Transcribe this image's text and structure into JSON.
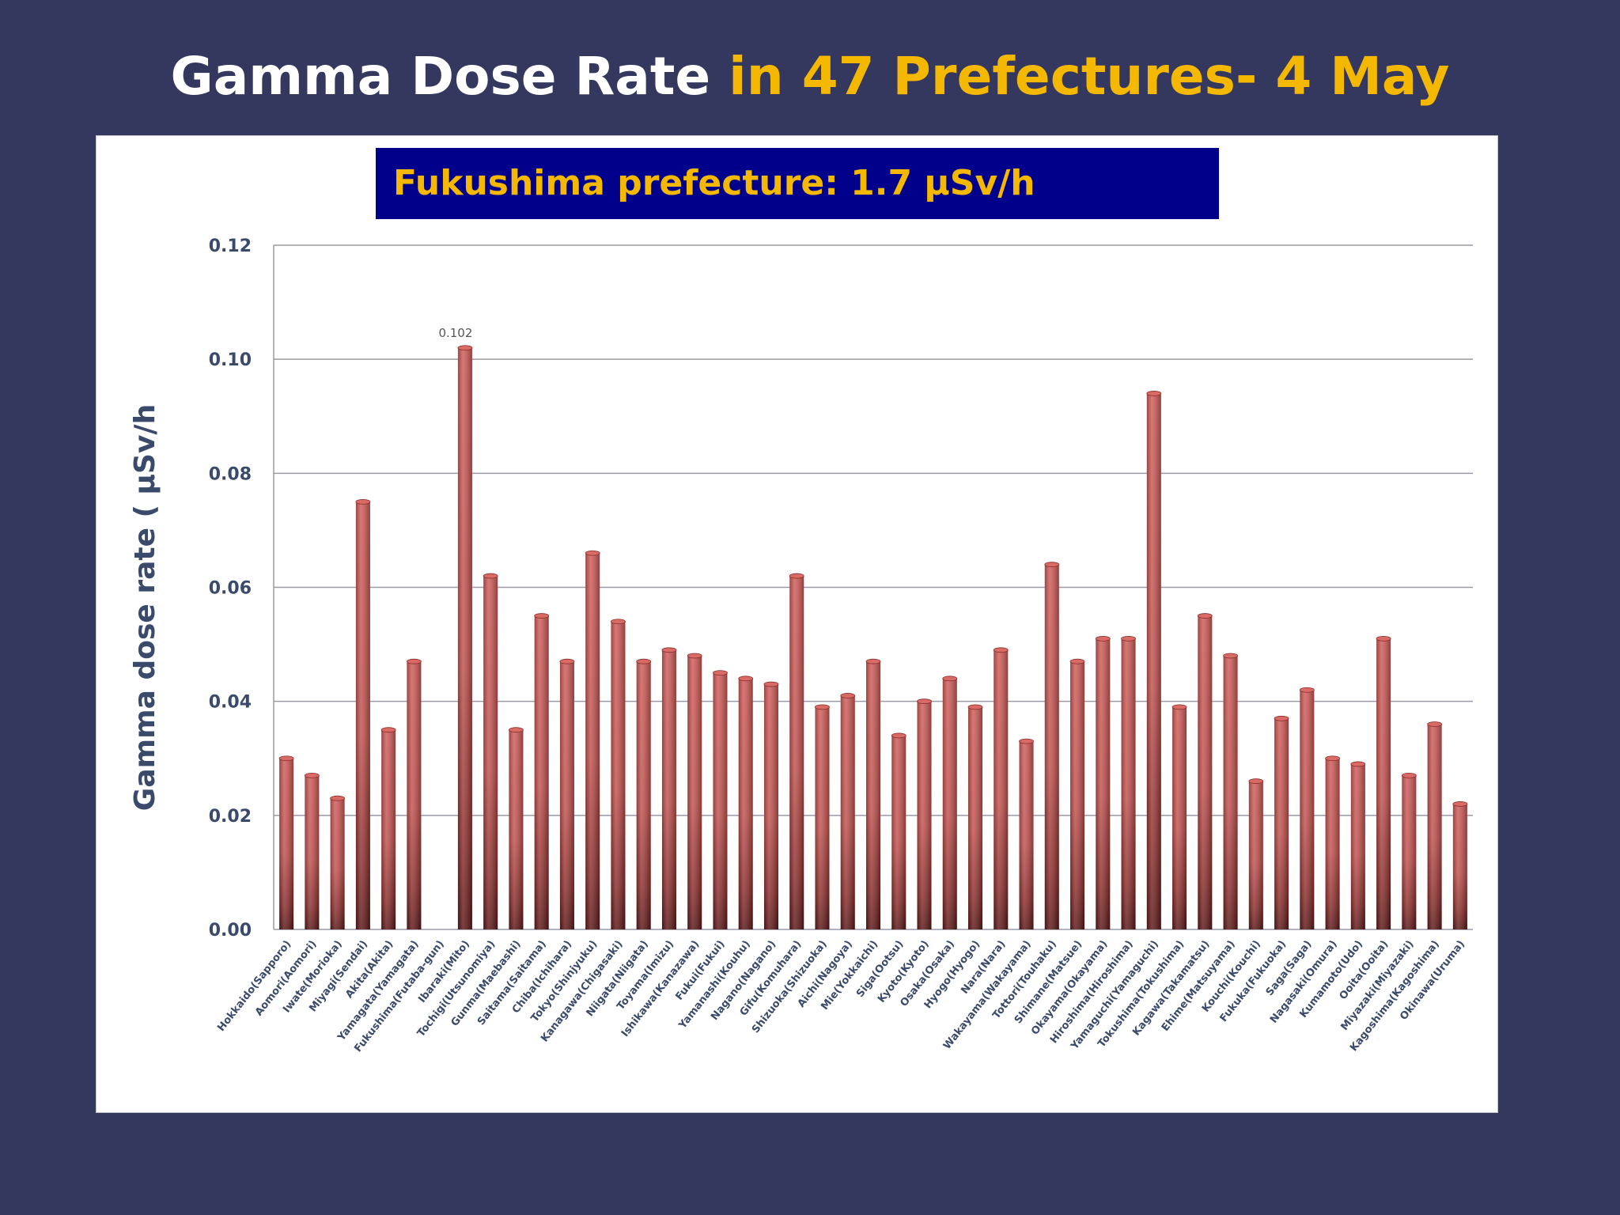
{
  "title": {
    "part1": "Gamma Dose Rate ",
    "part2": "in 47 Prefectures- 4 May"
  },
  "callout": "Fukushima prefecture: 1.7 µSv/h",
  "colors": {
    "background": "#34375e",
    "title_white": "#ffffff",
    "title_gold": "#f5b800",
    "callout_bg": "#00008b",
    "bar": "#c0504d",
    "bar_dark": "#5a1515"
  },
  "chart_data": {
    "type": "bar",
    "ylabel": "Gamma dose rate ( µSv/h",
    "ylim": [
      0,
      0.12
    ],
    "yticks": [
      "0.00",
      "0.02",
      "0.04",
      "0.06",
      "0.08",
      "0.10",
      "0.12"
    ],
    "grid": true,
    "categories": [
      "Hokkaido(Sapporo)",
      "Aomori(Aomori)",
      "Iwate(Morioka)",
      "Miyagi(Sendai)",
      "Akita(Akita)",
      "Yamagata(Yamagata)",
      "Fukushima(Futaba-gun)",
      "Ibaraki(Mito)",
      "Tochigi(Utsunomiya)",
      "Gunma(Maebashi)",
      "Saitama(Saitama)",
      "Chiba(Ichihara)",
      "Tokyo(Shinjyuku)",
      "Kanagawa(Chigasaki)",
      "Niigata(Niigata)",
      "Toyama(Imizu)",
      "Ishikawa(Kanazawa)",
      "Fukui(Fukui)",
      "Yamanashi(Kouhu)",
      "Nagano(Nagano)",
      "Gifu(Komuhara)",
      "Shizuoka(Shizuoka)",
      "Aichi(Nagoya)",
      "Mie(Yokkaichi)",
      "Siga(Ootsu)",
      "Kyoto(Kyoto)",
      "Osaka(Osaka)",
      "Hyogo(Hyogo)",
      "Nara(Nara)",
      "Wakayama(Wakayama)",
      "Tottori(Touhaku)",
      "Shimane(Matsue)",
      "Okayama(Okayama)",
      "Hiroshima(Hiroshima)",
      "Yamaguchi(Yamaguchi)",
      "Tokushima(Tokushima)",
      "Kagawa(Takamatsu)",
      "Ehime(Matsuyama)",
      "Kouchi(Kouchi)",
      "Fukuka(Fukuoka)",
      "Saga(Saga)",
      "Nagasaki(Omura)",
      "Kumamoto(Udo)",
      "Ooita(Ooita)",
      "Miyazaki(Miyazaki)",
      "Kagoshima(Kagoshima)",
      "Okinawa(Uruma)"
    ],
    "values": [
      0.03,
      0.027,
      0.023,
      0.075,
      0.035,
      0.047,
      null,
      0.102,
      0.062,
      0.035,
      0.055,
      0.047,
      0.066,
      0.054,
      0.047,
      0.049,
      0.048,
      0.045,
      0.044,
      0.043,
      0.062,
      0.039,
      0.041,
      0.047,
      0.034,
      0.04,
      0.044,
      0.039,
      0.049,
      0.033,
      0.064,
      0.047,
      0.051,
      0.051,
      0.094,
      0.039,
      0.055,
      0.048,
      0.026,
      0.037,
      0.042,
      0.03,
      0.029,
      0.051,
      0.027,
      0.036,
      0.022
    ],
    "annotations": [
      {
        "category": "Ibaraki(Mito)",
        "text": "0.102"
      }
    ]
  }
}
